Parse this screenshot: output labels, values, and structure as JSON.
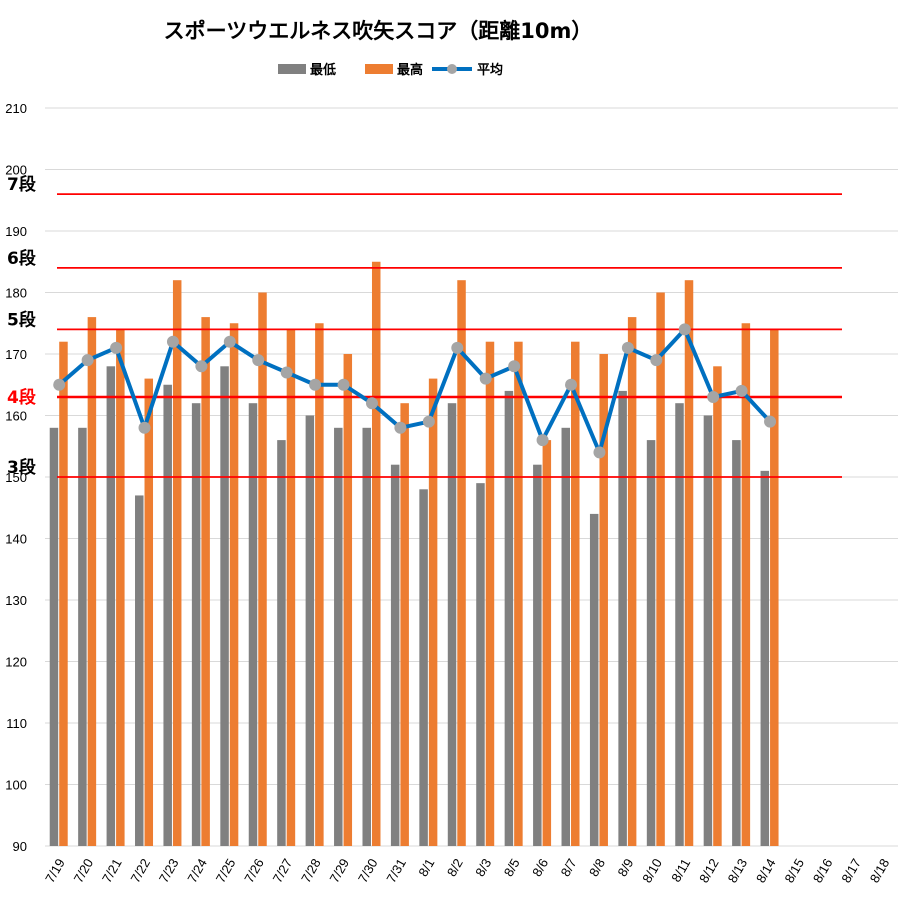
{
  "chart_data": {
    "type": "bar",
    "title": "スポーツウエルネス吹矢スコア（距離10m）",
    "categories": [
      "7/19",
      "7/20",
      "7/21",
      "7/22",
      "7/23",
      "7/24",
      "7/25",
      "7/26",
      "7/27",
      "7/28",
      "7/29",
      "7/30",
      "7/31",
      "8/1",
      "8/2",
      "8/3",
      "8/5",
      "8/6",
      "8/7",
      "8/8",
      "8/9",
      "8/10",
      "8/11",
      "8/12",
      "8/13",
      "8/14",
      "8/15",
      "8/16",
      "8/17",
      "8/18"
    ],
    "series": [
      {
        "name": "最低",
        "type": "bar",
        "color": "#808080",
        "values": [
          158,
          158,
          168,
          147,
          165,
          162,
          168,
          162,
          156,
          160,
          158,
          158,
          152,
          148,
          162,
          149,
          164,
          152,
          158,
          144,
          164,
          156,
          162,
          160,
          156,
          151,
          null,
          null,
          null,
          null
        ]
      },
      {
        "name": "最高",
        "type": "bar",
        "color": "#ED7D31",
        "values": [
          172,
          176,
          174,
          166,
          182,
          176,
          175,
          180,
          174,
          175,
          170,
          185,
          162,
          166,
          182,
          172,
          172,
          156,
          172,
          170,
          176,
          180,
          182,
          168,
          175,
          174,
          null,
          null,
          null,
          null
        ]
      },
      {
        "name": "平均",
        "type": "line",
        "color": "#0070C0",
        "marker_color": "#A5A5A5",
        "values": [
          165,
          169,
          171,
          158,
          172,
          168,
          172,
          169,
          167,
          165,
          165,
          162,
          158,
          159,
          171,
          166,
          168,
          156,
          165,
          154,
          171,
          169,
          174,
          163,
          164,
          159,
          null,
          null,
          null,
          null
        ]
      }
    ],
    "ylim": [
      90,
      210
    ],
    "yticks": [
      "90",
      "100",
      "110",
      "120",
      "130",
      "140",
      "150",
      "160",
      "170",
      "180",
      "190",
      "200",
      "210"
    ],
    "grid": true,
    "legend_position": "top",
    "rank_lines": [
      {
        "label": "7段",
        "value": 196,
        "label_color": "#000000"
      },
      {
        "label": "6段",
        "value": 184,
        "label_color": "#000000"
      },
      {
        "label": "5段",
        "value": 174,
        "label_color": "#000000"
      },
      {
        "label": "4段",
        "value": 163,
        "label_color": "#FF0000"
      },
      {
        "label": "3段",
        "value": 150,
        "label_color": "#000000"
      }
    ],
    "rank_line_color": "#FF0000"
  }
}
